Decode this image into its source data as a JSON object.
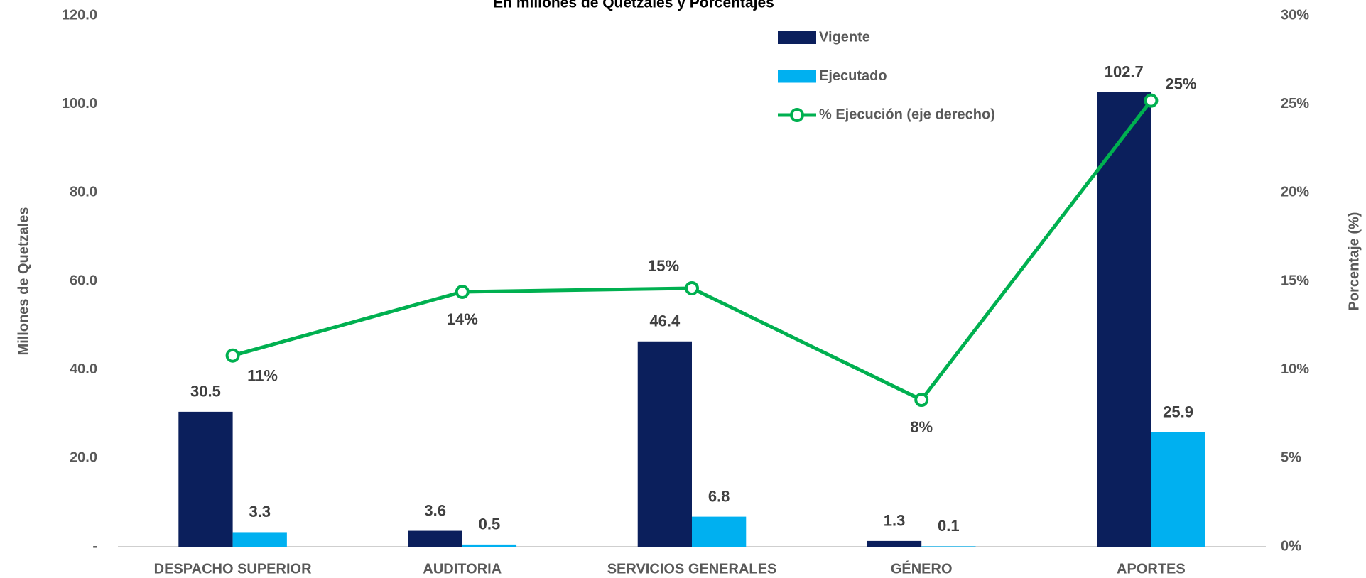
{
  "chart_data": {
    "type": "bar",
    "title": "En millones de Quetzales y Porcentajes",
    "y_label": "Millones de Quetzales",
    "y2_label": "Porcentaje (%)",
    "categories": [
      "DESPACHO SUPERIOR",
      "AUDITORIA",
      "SERVICIOS GENERALES",
      "GÉNERO",
      "APORTES"
    ],
    "series": [
      {
        "name": "Vigente",
        "color": "#0b1f5c",
        "values": [
          30.5,
          3.6,
          46.4,
          1.3,
          102.7
        ]
      },
      {
        "name": "Ejecutado",
        "color": "#00b0f0",
        "values": [
          3.3,
          0.5,
          6.8,
          0.1,
          25.9
        ]
      },
      {
        "name": "% Ejecución (eje derecho)",
        "color": "#00b050",
        "type": "line",
        "axis": "y2",
        "values": [
          10.8,
          14.4,
          14.6,
          8.3,
          25.2
        ],
        "value_labels": [
          "11%",
          "14%",
          "15%",
          "8%",
          "25%"
        ]
      }
    ],
    "ylim": [
      0,
      120
    ],
    "yticks": [
      {
        "value": 0,
        "label": "-"
      },
      {
        "value": 20,
        "label": "20.0"
      },
      {
        "value": 40,
        "label": "40.0"
      },
      {
        "value": 60,
        "label": "60.0"
      },
      {
        "value": 80,
        "label": "80.0"
      },
      {
        "value": 100,
        "label": "100.0"
      },
      {
        "value": 120,
        "label": "120.0"
      }
    ],
    "y2lim": [
      0,
      30
    ],
    "y2ticks": [
      {
        "value": 0,
        "label": "0%"
      },
      {
        "value": 5,
        "label": "5%"
      },
      {
        "value": 10,
        "label": "10%"
      },
      {
        "value": 15,
        "label": "15%"
      },
      {
        "value": 20,
        "label": "20%"
      },
      {
        "value": 25,
        "label": "25%"
      },
      {
        "value": 30,
        "label": "30%"
      }
    ],
    "grid": false,
    "legend": "top"
  }
}
